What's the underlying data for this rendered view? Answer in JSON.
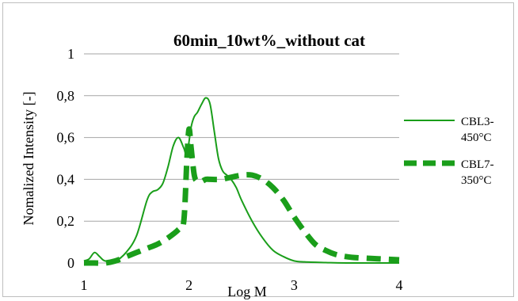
{
  "chart_data": {
    "type": "line",
    "title": "60min_10wt%_without cat",
    "xlabel": "Log M",
    "ylabel": "Nomalized Intensity [-]",
    "xlim": [
      1,
      4
    ],
    "ylim": [
      0,
      1
    ],
    "xticks": [
      "1",
      "2",
      "3",
      "4"
    ],
    "yticks": [
      "0",
      "0,2",
      "0,4",
      "0,6",
      "0,8",
      "1"
    ],
    "grid": true,
    "legend_position": "right",
    "colors": {
      "series": "#1a9e1a",
      "grid": "#a6a6a6",
      "frame": "#bfbfbf"
    },
    "series": [
      {
        "name_lines": [
          "CBL3-",
          "450°C"
        ],
        "style": "solid",
        "x": [
          1.0,
          1.05,
          1.1,
          1.15,
          1.2,
          1.3,
          1.4,
          1.5,
          1.6,
          1.65,
          1.7,
          1.75,
          1.8,
          1.85,
          1.9,
          1.95,
          1.98,
          2.02,
          2.05,
          2.08,
          2.12,
          2.16,
          2.2,
          2.24,
          2.28,
          2.32,
          2.36,
          2.4,
          2.45,
          2.5,
          2.6,
          2.7,
          2.8,
          2.9,
          3.0,
          3.1,
          3.3,
          3.5,
          4.0
        ],
        "y": [
          0.01,
          0.02,
          0.05,
          0.03,
          0.01,
          0.01,
          0.05,
          0.13,
          0.3,
          0.34,
          0.35,
          0.38,
          0.46,
          0.56,
          0.6,
          0.55,
          0.52,
          0.65,
          0.7,
          0.72,
          0.76,
          0.79,
          0.76,
          0.63,
          0.5,
          0.44,
          0.42,
          0.4,
          0.36,
          0.3,
          0.2,
          0.12,
          0.06,
          0.03,
          0.01,
          0.005,
          0.002,
          0.0,
          0.0
        ]
      },
      {
        "name_lines": [
          "CBL7-",
          "350°C"
        ],
        "style": "dashed",
        "x": [
          1.0,
          1.1,
          1.2,
          1.3,
          1.4,
          1.5,
          1.6,
          1.7,
          1.8,
          1.9,
          1.95,
          1.98,
          2.0,
          2.02,
          2.05,
          2.08,
          2.12,
          2.16,
          2.2,
          2.3,
          2.4,
          2.5,
          2.6,
          2.7,
          2.8,
          2.9,
          3.0,
          3.1,
          3.2,
          3.3,
          3.4,
          3.5,
          3.6,
          3.8,
          4.0
        ],
        "y": [
          0.0,
          0.0,
          0.0,
          0.01,
          0.03,
          0.05,
          0.07,
          0.09,
          0.12,
          0.16,
          0.2,
          0.5,
          0.64,
          0.55,
          0.42,
          0.39,
          0.39,
          0.4,
          0.4,
          0.4,
          0.41,
          0.42,
          0.42,
          0.4,
          0.36,
          0.3,
          0.22,
          0.15,
          0.09,
          0.06,
          0.04,
          0.03,
          0.025,
          0.02,
          0.015
        ]
      }
    ]
  }
}
